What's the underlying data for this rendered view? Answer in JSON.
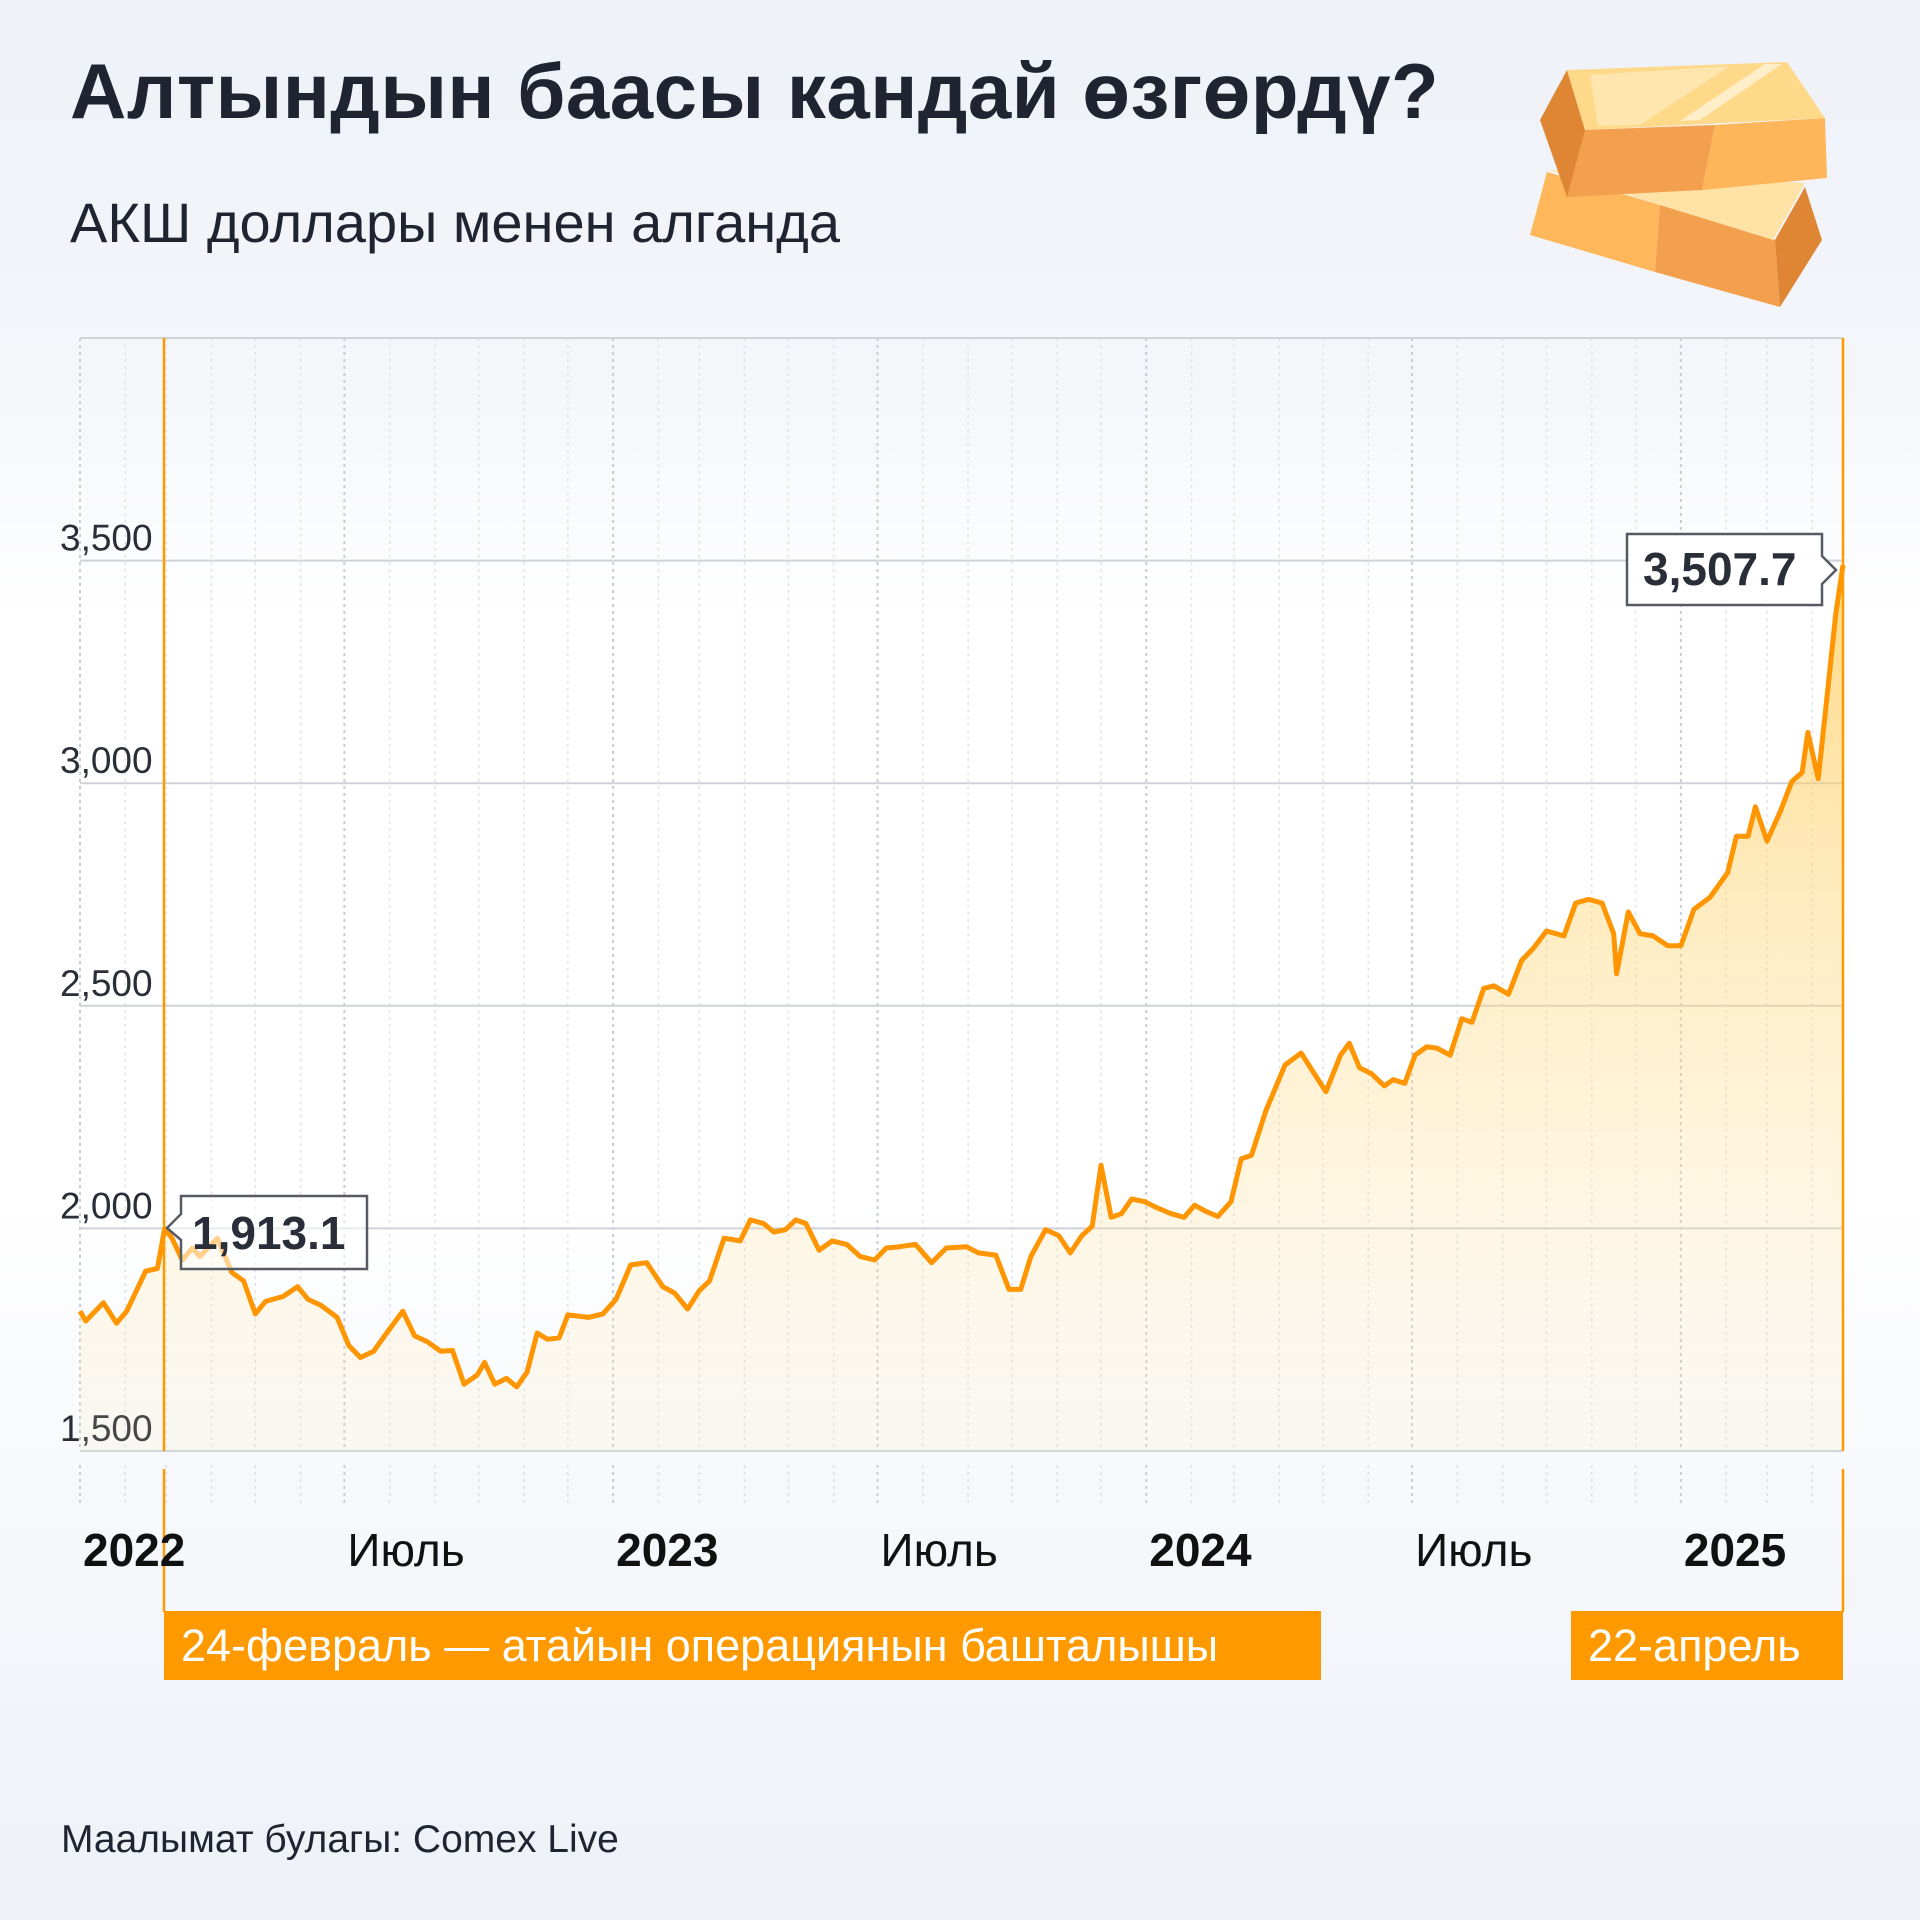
{
  "header": {
    "title": "Алтындын баасы кандай өзгөрдү?",
    "subtitle": "АКШ доллары менен алганда",
    "illustration": "gold-bars-icon"
  },
  "footer": {
    "source": "Маалымат булагы: Comex Live"
  },
  "chart_data": {
    "type": "area",
    "title": "Алтындын баасы кандай өзгөрдү?",
    "subtitle": "АКШ доллары менен алганда",
    "xlabel": "",
    "ylabel": "",
    "ylim": [
      1500,
      4000
    ],
    "xlim": [
      "2022-01-01",
      "2025-04-22"
    ],
    "y_ticks": [
      1500,
      2000,
      2500,
      3000,
      3500
    ],
    "y_tick_labels": [
      "1,500",
      "2,000",
      "2,500",
      "3,000",
      "3,500"
    ],
    "x_ticks": [
      {
        "date": "2022-01-01",
        "label": "2022",
        "bold": true
      },
      {
        "date": "2022-07-01",
        "label": "Июль",
        "bold": false
      },
      {
        "date": "2023-01-01",
        "label": "2023",
        "bold": true
      },
      {
        "date": "2023-07-01",
        "label": "Июль",
        "bold": false
      },
      {
        "date": "2024-01-01",
        "label": "2024",
        "bold": true
      },
      {
        "date": "2024-07-01",
        "label": "Июль",
        "bold": false
      },
      {
        "date": "2025-01-01",
        "label": "2025",
        "bold": true
      }
    ],
    "grid": true,
    "line_color": "#FF9500",
    "fill_color": "#FFD27A",
    "accent_color": "#FF9900",
    "dates": [
      "2022-01-01",
      "2022-01-05",
      "2022-01-17",
      "2022-01-26",
      "2022-02-02",
      "2022-02-15",
      "2022-02-23",
      "2022-02-28",
      "2022-03-05",
      "2022-03-12",
      "2022-03-19",
      "2022-03-24",
      "2022-04-05",
      "2022-04-15",
      "2022-04-23",
      "2022-05-01",
      "2022-05-08",
      "2022-05-20",
      "2022-05-30",
      "2022-06-06",
      "2022-06-15",
      "2022-06-26",
      "2022-07-04",
      "2022-07-12",
      "2022-07-21",
      "2022-07-30",
      "2022-08-10",
      "2022-08-18",
      "2022-08-27",
      "2022-09-05",
      "2022-09-13",
      "2022-09-21",
      "2022-09-30",
      "2022-10-05",
      "2022-10-12",
      "2022-10-20",
      "2022-10-27",
      "2022-11-03",
      "2022-11-10",
      "2022-11-17",
      "2022-11-25",
      "2022-12-01",
      "2022-12-15",
      "2022-12-25",
      "2023-01-03",
      "2023-01-13",
      "2023-01-24",
      "2023-02-04",
      "2023-02-12",
      "2023-02-21",
      "2023-03-01",
      "2023-03-08",
      "2023-03-18",
      "2023-03-29",
      "2023-04-05",
      "2023-04-14",
      "2023-04-21",
      "2023-04-29",
      "2023-05-06",
      "2023-05-13",
      "2023-05-22",
      "2023-05-31",
      "2023-06-10",
      "2023-06-19",
      "2023-06-29",
      "2023-07-07",
      "2023-07-16",
      "2023-07-27",
      "2023-08-07",
      "2023-08-17",
      "2023-08-31",
      "2023-09-08",
      "2023-09-20",
      "2023-09-29",
      "2023-10-07",
      "2023-10-14",
      "2023-10-24",
      "2023-11-02",
      "2023-11-10",
      "2023-11-18",
      "2023-11-25",
      "2023-12-01",
      "2023-12-08",
      "2023-12-15",
      "2023-12-22",
      "2023-12-31",
      "2024-01-08",
      "2024-01-18",
      "2024-01-27",
      "2024-02-03",
      "2024-02-11",
      "2024-02-19",
      "2024-02-28",
      "2024-03-06",
      "2024-03-13",
      "2024-03-23",
      "2024-04-05",
      "2024-04-16",
      "2024-04-25",
      "2024-05-03",
      "2024-05-13",
      "2024-05-19",
      "2024-05-26",
      "2024-06-03",
      "2024-06-12",
      "2024-06-18",
      "2024-06-26",
      "2024-07-03",
      "2024-07-11",
      "2024-07-18",
      "2024-07-27",
      "2024-08-04",
      "2024-08-11",
      "2024-08-19",
      "2024-08-26",
      "2024-09-05",
      "2024-09-14",
      "2024-09-22",
      "2024-10-01",
      "2024-10-13",
      "2024-10-21",
      "2024-10-30",
      "2024-11-08",
      "2024-11-16",
      "2024-11-18",
      "2024-11-26",
      "2024-12-04",
      "2024-12-13",
      "2024-12-23",
      "2025-01-01",
      "2025-01-10",
      "2025-01-21",
      "2025-02-02",
      "2025-02-08",
      "2025-02-16",
      "2025-02-21",
      "2025-03-01",
      "2025-03-10",
      "2025-03-18",
      "2025-03-25",
      "2025-03-29",
      "2025-04-05",
      "2025-04-12",
      "2025-04-17",
      "2025-04-22"
    ],
    "values": [
      1814,
      1792,
      1833,
      1787,
      1814,
      1904,
      1910,
      2000,
      1978,
      1929,
      1956,
      1937,
      1978,
      1901,
      1882,
      1808,
      1836,
      1847,
      1869,
      1841,
      1827,
      1800,
      1737,
      1710,
      1724,
      1765,
      1814,
      1759,
      1745,
      1724,
      1726,
      1650,
      1671,
      1699,
      1650,
      1663,
      1644,
      1677,
      1765,
      1751,
      1754,
      1806,
      1800,
      1808,
      1841,
      1918,
      1923,
      1869,
      1855,
      1819,
      1860,
      1882,
      1978,
      1972,
      2019,
      2011,
      1992,
      1997,
      2019,
      2011,
      1951,
      1972,
      1964,
      1937,
      1929,
      1956,
      1959,
      1964,
      1923,
      1956,
      1959,
      1945,
      1940,
      1863,
      1863,
      1937,
      1997,
      1984,
      1945,
      1984,
      2005,
      2142,
      2025,
      2033,
      2066,
      2060,
      2047,
      2033,
      2025,
      2052,
      2038,
      2027,
      2060,
      2156,
      2164,
      2265,
      2367,
      2394,
      2348,
      2307,
      2389,
      2416,
      2361,
      2348,
      2320,
      2334,
      2326,
      2389,
      2408,
      2405,
      2389,
      2471,
      2463,
      2539,
      2545,
      2526,
      2602,
      2629,
      2668,
      2657,
      2731,
      2739,
      2731,
      2662,
      2572,
      2711,
      2662,
      2657,
      2635,
      2635,
      2717,
      2744,
      2799,
      2881,
      2881,
      2947,
      2870,
      2936,
      3004,
      3024,
      3114,
      3010,
      3223,
      3379,
      3490
    ],
    "callouts": [
      {
        "date": "2022-02-24",
        "label": "1,913.1"
      },
      {
        "date": "2025-04-22",
        "label": "3,507.7"
      }
    ],
    "annotations": [
      {
        "date": "2022-02-24",
        "label": "24-февраль — атайын операциянын башталышы"
      },
      {
        "date": "2025-04-22",
        "label": "22-апрель"
      }
    ]
  }
}
